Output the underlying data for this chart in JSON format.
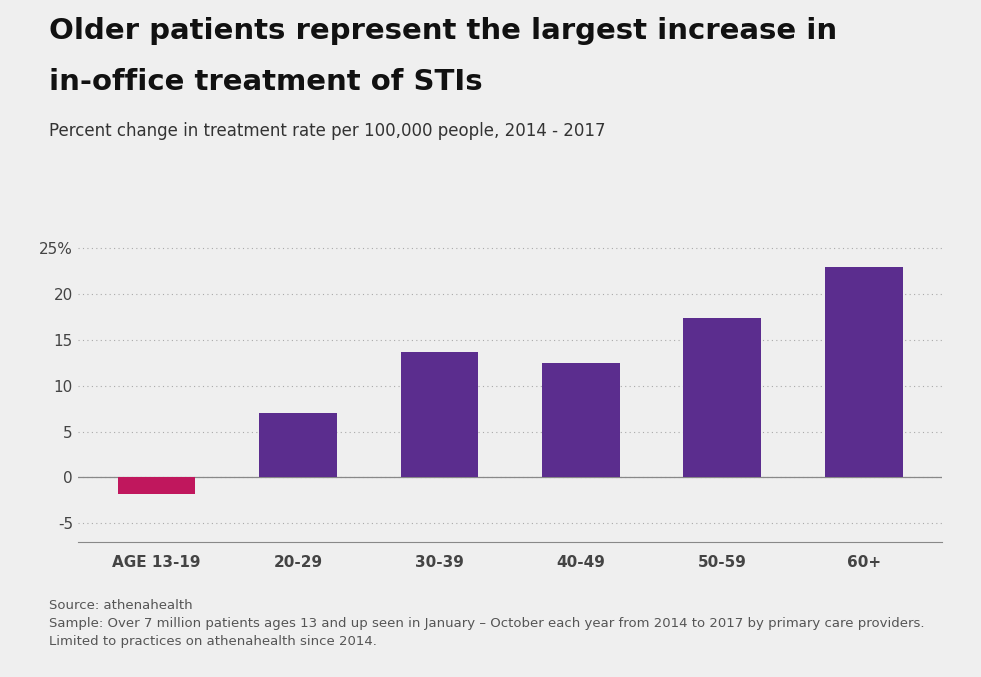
{
  "categories": [
    "AGE 13-19",
    "20-29",
    "30-39",
    "40-49",
    "50-59",
    "60+"
  ],
  "values": [
    -1.8,
    7.0,
    13.7,
    12.5,
    17.4,
    23.0
  ],
  "bar_colors": [
    "#c0175d",
    "#5b2d8e",
    "#5b2d8e",
    "#5b2d8e",
    "#5b2d8e",
    "#5b2d8e"
  ],
  "title_line1": "Older patients represent the largest increase in",
  "title_line2": "in-office treatment of STIs",
  "subtitle": "Percent change in treatment rate per 100,000 people, 2014 - 2017",
  "ylim": [
    -7,
    27
  ],
  "yticks": [
    -5,
    0,
    5,
    10,
    15,
    20,
    25
  ],
  "ytick_labels": [
    "-5",
    "0",
    "5",
    "10",
    "15",
    "20",
    "25%"
  ],
  "background_color": "#efefef",
  "source_text": "Source: athenahealth",
  "sample_text": "Sample: Over 7 million patients ages 13 and up seen in January – October each year from 2014 to 2017 by primary care providers.\nLimited to practices on athenahealth since 2014.",
  "title_fontsize": 21,
  "subtitle_fontsize": 12,
  "tick_fontsize": 11,
  "bar_width": 0.55
}
